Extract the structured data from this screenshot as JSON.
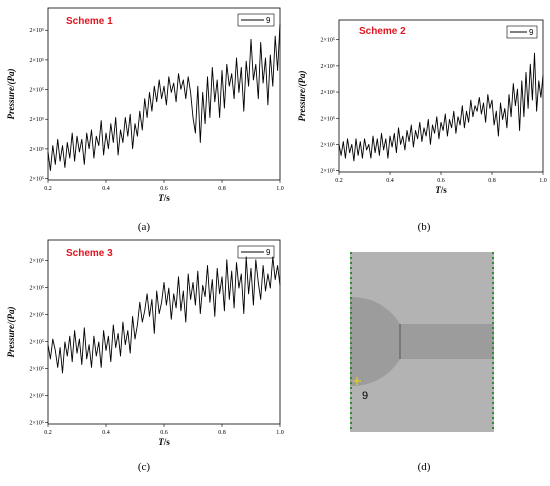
{
  "chart_data": [
    {
      "type": "line",
      "panel": "(a)",
      "annotation": "Scheme 1",
      "xlabel_italic": "T",
      "xlabel_rest": "/s",
      "ylabel": "Pressure/(Pa)",
      "xlim": [
        0.2,
        1.0
      ],
      "x_ticks": [
        "0.2",
        "0.4",
        "0.6",
        "0.8",
        "1.0"
      ],
      "y_ticks": [
        "2×10⁵",
        "2×10⁵",
        "2×10⁵",
        "2×10⁵",
        "2×10⁵",
        "2×10⁵"
      ],
      "ylim": [
        0,
        5.5
      ],
      "legend": {
        "label": "9",
        "placement": "top-right"
      },
      "series": [
        {
          "name": "9",
          "x_start": 0.2,
          "x_end": 1.0,
          "values": [
            0.9,
            0.3,
            1.1,
            0.5,
            1.3,
            0.6,
            1.1,
            0.4,
            1.2,
            0.7,
            1.5,
            0.6,
            1.4,
            0.9,
            1.3,
            0.5,
            1.5,
            1.0,
            1.6,
            0.7,
            1.4,
            1.1,
            1.9,
            0.8,
            1.5,
            1.0,
            1.8,
            1.2,
            2.0,
            0.8,
            1.6,
            1.2,
            2.0,
            1.4,
            2.1,
            1.0,
            1.8,
            1.4,
            2.2,
            1.6,
            2.6,
            2.0,
            2.8,
            2.2,
            3.0,
            2.5,
            3.2,
            2.6,
            3.0,
            2.4,
            3.3,
            2.8,
            3.1,
            2.5,
            3.4,
            2.9,
            3.2,
            2.6,
            3.3,
            2.8,
            2.0,
            1.5,
            3.0,
            1.2,
            2.8,
            1.8,
            3.3,
            2.0,
            3.6,
            2.5,
            3.2,
            2.0,
            3.5,
            2.3,
            3.7,
            3.0,
            3.4,
            2.6,
            3.9,
            2.8,
            3.6,
            2.2,
            3.8,
            3.0,
            4.5,
            3.2,
            3.7,
            2.6,
            4.4,
            3.1,
            3.9,
            2.4,
            4.0,
            3.0,
            4.6,
            3.5,
            5.0
          ]
        }
      ]
    },
    {
      "type": "line",
      "panel": "(b)",
      "annotation": "Scheme 2",
      "xlabel_italic": "T",
      "xlabel_rest": "/s",
      "ylabel": "Pressure/(Pa)",
      "xlim": [
        0.2,
        1.0
      ],
      "x_ticks": [
        "0.2",
        "0.4",
        "0.6",
        "0.8",
        "1.0"
      ],
      "y_ticks": [
        "2×10⁵",
        "2×10⁵",
        "2×10⁵",
        "2×10⁵",
        "2×10⁵",
        "2×10⁵"
      ],
      "ylim": [
        0,
        5.5
      ],
      "legend": {
        "label": "9",
        "placement": "top-right"
      },
      "series": [
        {
          "name": "9",
          "x_start": 0.2,
          "x_end": 1.0,
          "values": [
            1.0,
            0.6,
            1.1,
            0.5,
            1.2,
            0.7,
            1.0,
            0.4,
            1.2,
            0.6,
            1.1,
            0.5,
            1.2,
            0.8,
            1.0,
            0.5,
            1.3,
            0.7,
            1.2,
            0.6,
            1.4,
            0.8,
            1.2,
            0.5,
            1.3,
            0.9,
            1.4,
            0.7,
            1.6,
            1.0,
            1.3,
            0.8,
            1.5,
            1.1,
            1.7,
            0.9,
            1.5,
            1.2,
            1.8,
            1.1,
            1.6,
            1.3,
            1.9,
            1.0,
            1.7,
            1.4,
            2.0,
            1.2,
            1.8,
            1.5,
            2.1,
            1.3,
            1.9,
            1.6,
            2.2,
            1.4,
            2.0,
            1.7,
            2.4,
            1.6,
            2.2,
            1.8,
            2.6,
            2.0,
            2.4,
            2.2,
            2.7,
            2.1,
            2.5,
            1.8,
            2.8,
            2.3,
            2.6,
            1.7,
            2.2,
            1.3,
            2.5,
            1.9,
            2.3,
            1.6,
            2.8,
            2.0,
            3.2,
            2.4,
            3.0,
            1.5,
            3.3,
            2.0,
            3.6,
            2.3,
            3.9,
            2.6,
            4.3,
            2.2,
            3.3,
            2.7,
            3.5
          ]
        }
      ]
    },
    {
      "type": "line",
      "panel": "(c)",
      "annotation": "Scheme 3",
      "xlabel_italic": "T",
      "xlabel_rest": "/s",
      "ylabel": "Pressure/(Pa)",
      "xlim": [
        0.2,
        1.0
      ],
      "x_ticks": [
        "0.2",
        "0.4",
        "0.6",
        "0.8",
        "1.0"
      ],
      "y_ticks": [
        "2×10⁵",
        "2×10⁵",
        "2×10⁵",
        "2×10⁵",
        "2×10⁵",
        "2×10⁵",
        "2×10⁵"
      ],
      "ylim": [
        0,
        6.5
      ],
      "legend": {
        "label": "9",
        "placement": "top-right"
      },
      "series": [
        {
          "name": "9",
          "x_start": 0.2,
          "x_end": 1.0,
          "values": [
            2.8,
            2.3,
            3.0,
            2.6,
            2.0,
            2.7,
            1.8,
            2.9,
            2.4,
            3.1,
            2.2,
            3.3,
            2.5,
            3.0,
            2.1,
            3.4,
            2.3,
            2.8,
            2.0,
            3.1,
            2.4,
            2.9,
            2.0,
            3.3,
            2.6,
            3.1,
            2.2,
            3.5,
            2.7,
            3.2,
            2.4,
            3.6,
            2.8,
            3.3,
            2.5,
            3.8,
            3.0,
            3.5,
            4.3,
            3.6,
            4.0,
            4.6,
            3.8,
            4.4,
            3.2,
            4.7,
            3.9,
            4.3,
            5.0,
            4.2,
            4.8,
            3.7,
            4.6,
            4.1,
            5.2,
            4.0,
            4.7,
            3.6,
            5.3,
            4.4,
            5.0,
            4.2,
            5.4,
            3.9,
            4.9,
            4.5,
            5.6,
            4.3,
            5.1,
            3.8,
            5.5,
            4.6,
            5.2,
            4.0,
            5.8,
            4.4,
            5.4,
            4.1,
            5.7,
            4.8,
            5.3,
            3.9,
            5.9,
            4.6,
            5.5,
            4.2,
            5.8,
            5.0,
            4.4,
            5.6,
            4.7,
            5.3,
            4.8,
            5.9,
            5.1,
            5.6,
            4.9
          ]
        }
      ]
    }
  ],
  "panels": {
    "a_caption": "(a)",
    "b_caption": "(b)",
    "c_caption": "(c)",
    "d_caption": "(d)",
    "d_probe_label": "9"
  }
}
